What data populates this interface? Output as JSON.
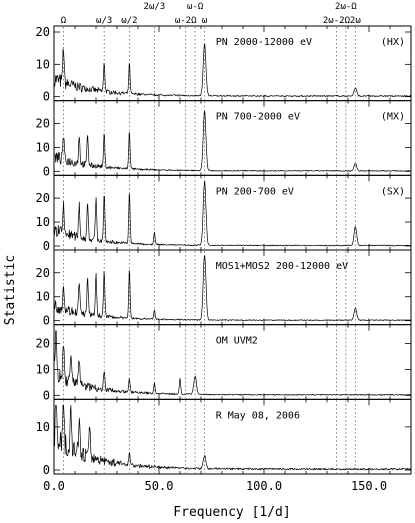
{
  "chart_data": {
    "type": "line",
    "xlabel": "Frequency [1/d]",
    "ylabel": "Statistic",
    "xlim": [
      0,
      170
    ],
    "xticks": [
      0,
      50,
      100,
      150
    ],
    "xtick_labels": [
      "0.0",
      "50.0",
      "100.0",
      "150.0"
    ],
    "top_labels": [
      {
        "text": "Ω",
        "x": 4.5,
        "row": 2
      },
      {
        "text": "ω/3",
        "x": 23.9,
        "row": 2
      },
      {
        "text": "ω/2",
        "x": 35.9,
        "row": 2
      },
      {
        "text": "2ω/3",
        "x": 47.8,
        "row": 1
      },
      {
        "text": "ω-2Ω",
        "x": 62.7,
        "row": 2
      },
      {
        "text": "ω-Ω",
        "x": 67.2,
        "row": 1
      },
      {
        "text": "ω",
        "x": 71.7,
        "row": 2
      },
      {
        "text": "2ω-2Ω",
        "x": 134.5,
        "row": 2
      },
      {
        "text": "2ω-Ω",
        "x": 139.0,
        "row": 1
      },
      {
        "text": "2ω",
        "x": 143.5,
        "row": 2
      }
    ],
    "reference_lines": [
      4.5,
      23.9,
      35.9,
      47.8,
      62.7,
      67.2,
      71.7,
      134.5,
      139.0,
      143.5
    ],
    "panels": [
      {
        "label": "PN 2000-12000 eV",
        "tag": "(HX)",
        "ylim": [
          0,
          20
        ],
        "yticks": [
          0,
          10,
          20
        ],
        "series": [],
        "peaks": [
          [
            4.5,
            11
          ],
          [
            23.9,
            9
          ],
          [
            35.9,
            9.5
          ],
          [
            71.7,
            16
          ],
          [
            143.5,
            2.5
          ]
        ],
        "noise_base": 8
      },
      {
        "label": "PN 700-2000 eV",
        "tag": "(MX)",
        "ylim": [
          0,
          27
        ],
        "yticks": [
          0,
          10,
          20
        ],
        "peaks": [
          [
            4.5,
            10
          ],
          [
            12,
            12
          ],
          [
            16,
            13
          ],
          [
            23.9,
            14
          ],
          [
            35.9,
            16
          ],
          [
            71.7,
            25
          ],
          [
            143.5,
            3
          ]
        ],
        "noise_base": 9
      },
      {
        "label": "PN 200-700 eV",
        "tag": "(SX)",
        "ylim": [
          0,
          27
        ],
        "yticks": [
          0,
          10,
          20
        ],
        "peaks": [
          [
            4.5,
            11
          ],
          [
            12,
            14
          ],
          [
            16,
            16
          ],
          [
            20,
            18
          ],
          [
            23.9,
            20
          ],
          [
            35.9,
            22
          ],
          [
            47.8,
            5
          ],
          [
            71.7,
            27
          ],
          [
            143.5,
            8
          ]
        ],
        "noise_base": 10
      },
      {
        "label": "MOS1+MOS2 200-12000 eV",
        "tag": "",
        "ylim": [
          0,
          27
        ],
        "yticks": [
          0,
          10,
          20
        ],
        "peaks": [
          [
            4.5,
            10
          ],
          [
            12,
            13
          ],
          [
            16,
            15
          ],
          [
            20,
            17
          ],
          [
            23.9,
            19
          ],
          [
            35.9,
            21
          ],
          [
            47.8,
            4
          ],
          [
            71.7,
            28
          ],
          [
            143.5,
            5
          ]
        ],
        "noise_base": 9
      },
      {
        "label": "OM UVM2",
        "tag": "",
        "ylim": [
          0,
          25
        ],
        "yticks": [
          0,
          10,
          20
        ],
        "peaks": [
          [
            1,
            20
          ],
          [
            4.5,
            14
          ],
          [
            8,
            12
          ],
          [
            12,
            10
          ],
          [
            23.9,
            7
          ],
          [
            35.9,
            5
          ],
          [
            47.8,
            4
          ],
          [
            60,
            6
          ],
          [
            67.2,
            7
          ]
        ],
        "noise_base": 12
      },
      {
        "label": "R May 08, 2006",
        "tag": "",
        "ylim": [
          0,
          15
        ],
        "yticks": [
          0,
          10
        ],
        "peaks": [
          [
            1,
            14
          ],
          [
            4.5,
            13
          ],
          [
            8,
            11
          ],
          [
            12,
            8
          ],
          [
            17,
            7
          ],
          [
            35.9,
            3
          ],
          [
            71.7,
            3
          ]
        ],
        "noise_base": 11
      }
    ]
  }
}
